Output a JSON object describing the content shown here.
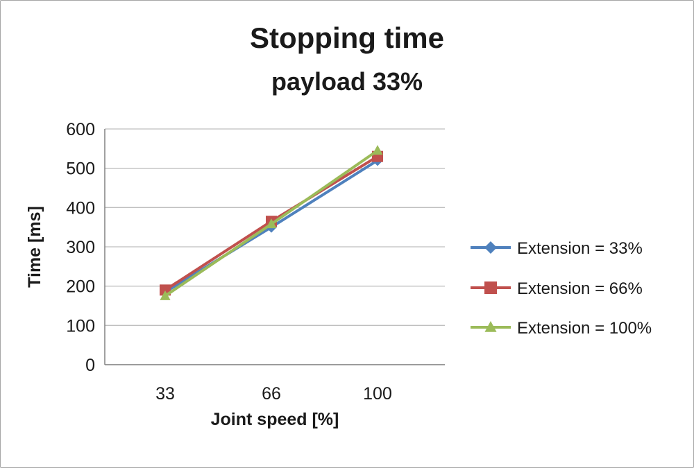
{
  "chart_data": {
    "type": "line",
    "title": "Stopping time",
    "subtitle": "payload 33%",
    "xlabel": "Joint speed [%]",
    "ylabel": "Time [ms]",
    "categories": [
      "33",
      "66",
      "100"
    ],
    "ylim": [
      0,
      600
    ],
    "ytick_step": 100,
    "grid": true,
    "legend_position": "right",
    "series": [
      {
        "name": "Extension = 33%",
        "color": "#4F81BD",
        "marker": "diamond",
        "values": [
          185,
          350,
          520
        ]
      },
      {
        "name": "Extension = 66%",
        "color": "#C0504D",
        "marker": "square",
        "values": [
          190,
          365,
          530
        ]
      },
      {
        "name": "Extension = 100%",
        "color": "#9BBB59",
        "marker": "triangle",
        "values": [
          175,
          358,
          545
        ]
      }
    ],
    "colors": {
      "gridline": "#bfbfbf",
      "axis": "#808080",
      "text": "#1a1a1a"
    }
  }
}
